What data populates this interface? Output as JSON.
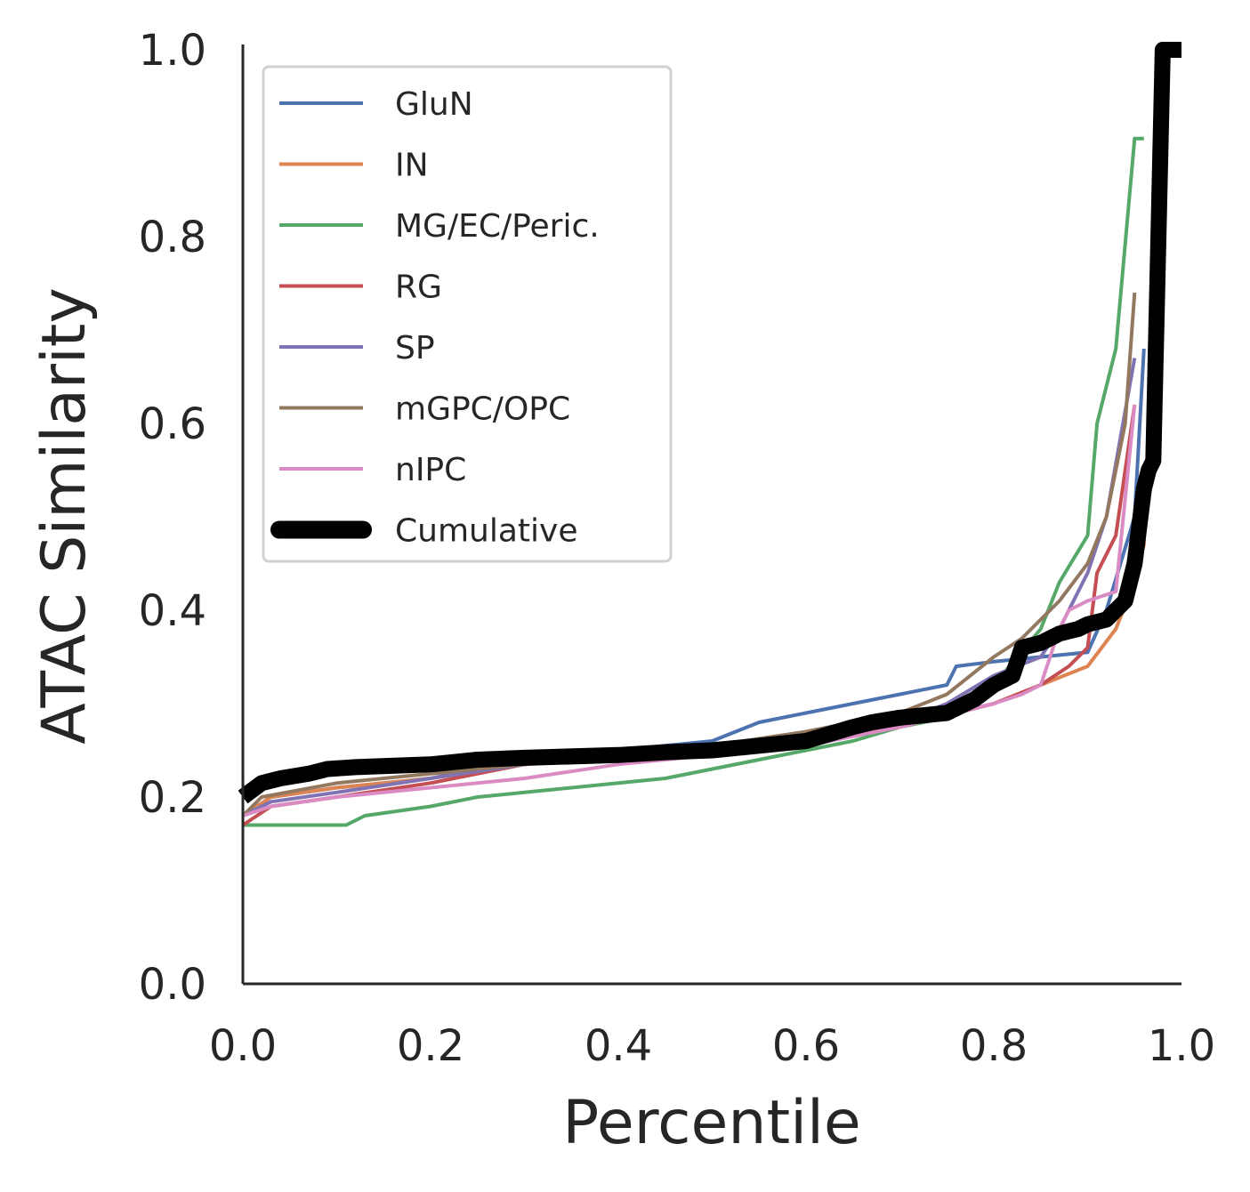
{
  "chart_data": {
    "type": "line",
    "xlabel": "Percentile",
    "ylabel": "ATAC Similarity",
    "xlim": [
      0.0,
      1.0
    ],
    "ylim": [
      0.0,
      1.0
    ],
    "xticks": [
      "0.0",
      "0.2",
      "0.4",
      "0.6",
      "0.8",
      "1.0"
    ],
    "yticks": [
      "0.0",
      "0.2",
      "0.4",
      "0.6",
      "0.8",
      "1.0"
    ],
    "grid": false,
    "legend_position": "top-left",
    "series": [
      {
        "name": "GluN",
        "color": "#4c72b0",
        "x": [
          0,
          0.03,
          0.1,
          0.2,
          0.3,
          0.4,
          0.45,
          0.5,
          0.55,
          0.6,
          0.65,
          0.7,
          0.75,
          0.76,
          0.8,
          0.85,
          0.9,
          0.92,
          0.95,
          0.96
        ],
        "y": [
          0.18,
          0.2,
          0.21,
          0.22,
          0.24,
          0.25,
          0.255,
          0.26,
          0.28,
          0.29,
          0.3,
          0.31,
          0.32,
          0.34,
          0.345,
          0.35,
          0.355,
          0.4,
          0.5,
          0.68
        ]
      },
      {
        "name": "IN",
        "color": "#dd8452",
        "x": [
          0,
          0.03,
          0.1,
          0.2,
          0.3,
          0.4,
          0.5,
          0.6,
          0.7,
          0.8,
          0.85,
          0.9,
          0.93,
          0.95,
          0.96,
          0.965
        ],
        "y": [
          0.18,
          0.2,
          0.21,
          0.22,
          0.235,
          0.24,
          0.25,
          0.26,
          0.275,
          0.3,
          0.32,
          0.34,
          0.38,
          0.43,
          0.47,
          0.6
        ]
      },
      {
        "name": "MG/EC/Peric.",
        "color": "#55a868",
        "x": [
          0,
          0.11,
          0.13,
          0.2,
          0.25,
          0.3,
          0.4,
          0.45,
          0.5,
          0.55,
          0.6,
          0.65,
          0.7,
          0.75,
          0.8,
          0.85,
          0.87,
          0.9,
          0.91,
          0.93,
          0.95,
          0.96
        ],
        "y": [
          0.17,
          0.17,
          0.18,
          0.19,
          0.2,
          0.205,
          0.215,
          0.22,
          0.23,
          0.24,
          0.25,
          0.26,
          0.275,
          0.285,
          0.32,
          0.38,
          0.43,
          0.48,
          0.6,
          0.68,
          0.905,
          0.905
        ]
      },
      {
        "name": "RG",
        "color": "#c44e52",
        "x": [
          0,
          0.03,
          0.1,
          0.2,
          0.3,
          0.4,
          0.5,
          0.6,
          0.7,
          0.8,
          0.85,
          0.88,
          0.9,
          0.91,
          0.93,
          0.95
        ],
        "y": [
          0.17,
          0.19,
          0.2,
          0.215,
          0.235,
          0.245,
          0.25,
          0.26,
          0.275,
          0.3,
          0.32,
          0.34,
          0.36,
          0.44,
          0.48,
          0.62
        ]
      },
      {
        "name": "SP",
        "color": "#8172b3",
        "x": [
          0,
          0.03,
          0.1,
          0.2,
          0.3,
          0.4,
          0.5,
          0.6,
          0.7,
          0.75,
          0.8,
          0.85,
          0.87,
          0.9,
          0.92,
          0.95
        ],
        "y": [
          0.18,
          0.195,
          0.205,
          0.22,
          0.235,
          0.245,
          0.255,
          0.265,
          0.28,
          0.3,
          0.33,
          0.35,
          0.38,
          0.44,
          0.5,
          0.67
        ]
      },
      {
        "name": "mGPC/OPC",
        "color": "#937860",
        "x": [
          0,
          0.02,
          0.1,
          0.2,
          0.3,
          0.4,
          0.5,
          0.6,
          0.7,
          0.75,
          0.8,
          0.83,
          0.87,
          0.9,
          0.92,
          0.94,
          0.95
        ],
        "y": [
          0.18,
          0.2,
          0.215,
          0.225,
          0.235,
          0.245,
          0.255,
          0.27,
          0.29,
          0.31,
          0.35,
          0.37,
          0.41,
          0.45,
          0.5,
          0.6,
          0.74
        ]
      },
      {
        "name": "nIPC",
        "color": "#da8bc3",
        "x": [
          0,
          0.03,
          0.1,
          0.2,
          0.3,
          0.4,
          0.5,
          0.6,
          0.7,
          0.8,
          0.83,
          0.85,
          0.87,
          0.88,
          0.9,
          0.93,
          0.95
        ],
        "y": [
          0.18,
          0.19,
          0.2,
          0.21,
          0.22,
          0.235,
          0.245,
          0.255,
          0.275,
          0.3,
          0.31,
          0.32,
          0.38,
          0.4,
          0.41,
          0.42,
          0.62
        ]
      },
      {
        "name": "Cumulative",
        "color": "#000000",
        "x": [
          0,
          0.02,
          0.04,
          0.07,
          0.09,
          0.12,
          0.2,
          0.25,
          0.3,
          0.4,
          0.45,
          0.5,
          0.55,
          0.6,
          0.65,
          0.67,
          0.7,
          0.75,
          0.78,
          0.8,
          0.82,
          0.83,
          0.85,
          0.87,
          0.89,
          0.9,
          0.92,
          0.94,
          0.95,
          0.96,
          0.965,
          0.97,
          0.98,
          1.0
        ],
        "y": [
          0.2,
          0.215,
          0.22,
          0.225,
          0.23,
          0.232,
          0.235,
          0.24,
          0.242,
          0.245,
          0.248,
          0.25,
          0.255,
          0.26,
          0.275,
          0.28,
          0.285,
          0.29,
          0.305,
          0.32,
          0.33,
          0.36,
          0.365,
          0.375,
          0.38,
          0.385,
          0.39,
          0.41,
          0.45,
          0.53,
          0.55,
          0.56,
          1.0,
          1.0
        ]
      }
    ]
  }
}
